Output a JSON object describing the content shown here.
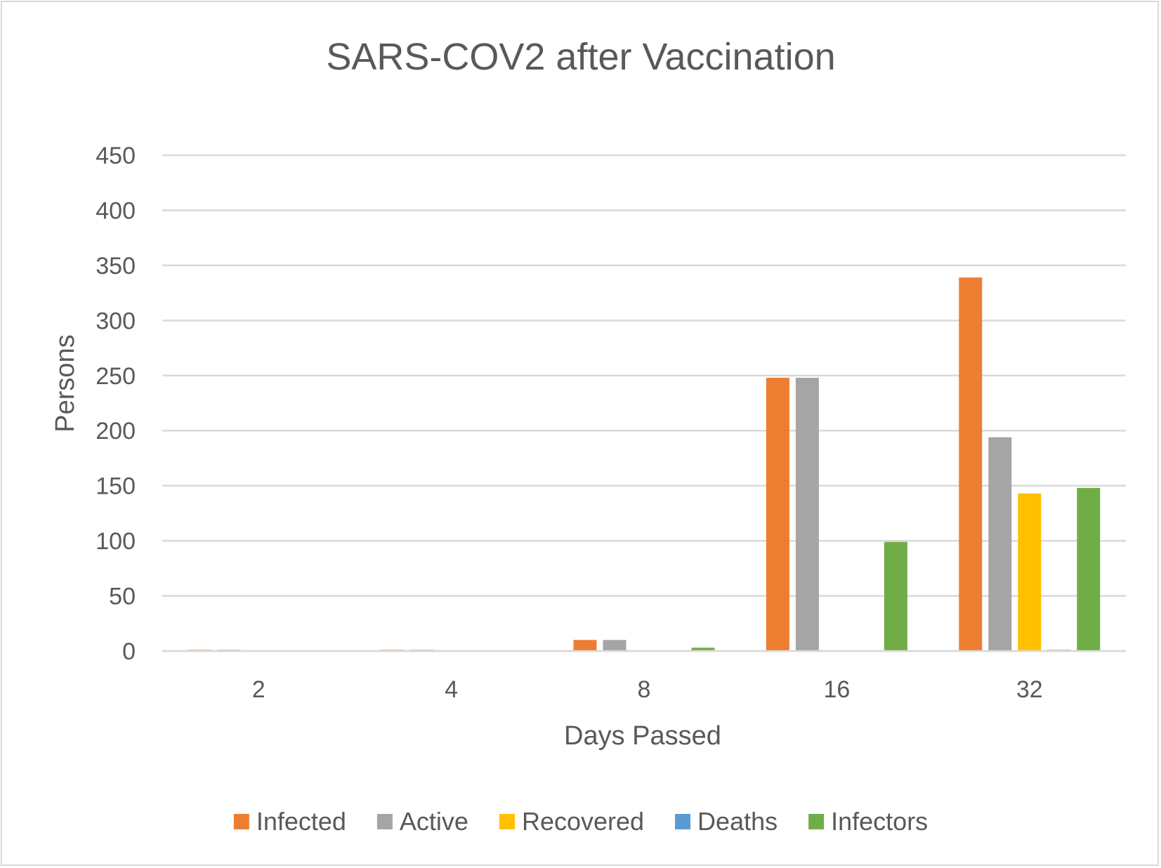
{
  "chart_data": {
    "type": "bar",
    "title": "SARS-COV2 after Vaccination",
    "xlabel": "Days Passed",
    "ylabel": "Persons",
    "ylim": [
      0,
      450
    ],
    "yticks": [
      0,
      50,
      100,
      150,
      200,
      250,
      300,
      350,
      400,
      450
    ],
    "categories": [
      "2",
      "4",
      "8",
      "16",
      "32"
    ],
    "grid": true,
    "legend_position": "bottom",
    "series": [
      {
        "name": "Infected",
        "color": "#ED7D31",
        "values": [
          1,
          1,
          10,
          248,
          339
        ]
      },
      {
        "name": "Active",
        "color": "#A5A5A5",
        "values": [
          1,
          1,
          10,
          248,
          194
        ]
      },
      {
        "name": "Recovered",
        "color": "#FFC000",
        "values": [
          0,
          0,
          0,
          0,
          143
        ]
      },
      {
        "name": "Deaths",
        "color": "#5B9BD5",
        "values": [
          0,
          0,
          0,
          0,
          1
        ]
      },
      {
        "name": "Infectors",
        "color": "#70AD47",
        "values": [
          0,
          0,
          3,
          99,
          148
        ]
      }
    ]
  }
}
